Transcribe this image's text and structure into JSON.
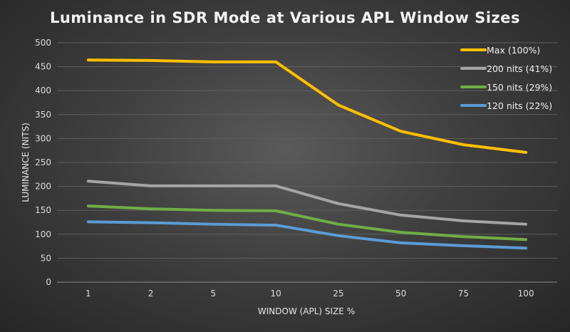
{
  "chart_data": {
    "type": "line",
    "title": "Luminance in SDR Mode at Various APL Window Sizes",
    "xlabel": "WINDOW (APL) SIZE %",
    "ylabel": "LUMINANCE (NITS)",
    "categories": [
      "1",
      "2",
      "5",
      "10",
      "25",
      "50",
      "75",
      "100"
    ],
    "ylim": [
      0,
      500
    ],
    "yticks": [
      "0",
      "50",
      "100",
      "150",
      "200",
      "250",
      "300",
      "350",
      "400",
      "450",
      "500"
    ],
    "grid": true,
    "legend_position": "top-right",
    "series": [
      {
        "name": "Max (100%)",
        "color": "#ffc000",
        "values": [
          464,
          463,
          460,
          460,
          370,
          315,
          287,
          271
        ]
      },
      {
        "name": "200 nits (41%)",
        "color": "#a5a5a5",
        "values": [
          211,
          201,
          201,
          201,
          164,
          140,
          128,
          121
        ]
      },
      {
        "name": "150 nits (29%)",
        "color": "#70ad47",
        "values": [
          159,
          153,
          150,
          149,
          121,
          104,
          95,
          89
        ]
      },
      {
        "name": "120 nits (22%)",
        "color": "#5b9bd5",
        "values": [
          126,
          124,
          121,
          119,
          97,
          82,
          76,
          71
        ]
      }
    ]
  }
}
